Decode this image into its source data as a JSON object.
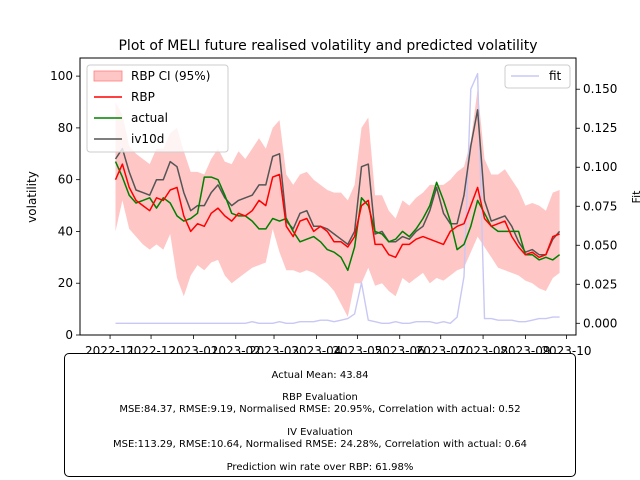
{
  "chart_data": {
    "type": "line",
    "title": "Plot of MELI future realised volatility and predicted volatility",
    "ylabel": "volatility",
    "y2label": "Fit",
    "x_ticks": [
      "2022-11",
      "2022-12",
      "2023-01",
      "2023-02",
      "2023-03",
      "2023-04",
      "2023-05",
      "2023-06",
      "2023-07",
      "2023-08",
      "2023-09",
      "2023-10"
    ],
    "ylim": [
      0,
      107
    ],
    "y_ticks": [
      0,
      20,
      40,
      60,
      80,
      100
    ],
    "y2lim": [
      -0.0075,
      0.17
    ],
    "y2_ticks": [
      "0.000",
      "0.025",
      "0.050",
      "0.075",
      "0.100",
      "0.125",
      "0.150"
    ],
    "legend_left": [
      "RBP CI (95%)",
      "RBP",
      "actual",
      "iv10d"
    ],
    "legend_right": [
      "fit"
    ],
    "colors": {
      "rbp": "#ff0000",
      "actual": "#008000",
      "iv10d": "#555555",
      "ci": "#ffb3b3",
      "fit": "#c8c8f5"
    },
    "x": [
      "2022-11-05",
      "2022-11-10",
      "2022-11-15",
      "2022-11-20",
      "2022-11-25",
      "2022-11-30",
      "2022-12-05",
      "2022-12-10",
      "2022-12-15",
      "2022-12-20",
      "2022-12-25",
      "2022-12-30",
      "2023-01-04",
      "2023-01-09",
      "2023-01-14",
      "2023-01-19",
      "2023-01-24",
      "2023-01-29",
      "2023-02-03",
      "2023-02-08",
      "2023-02-13",
      "2023-02-18",
      "2023-02-23",
      "2023-02-28",
      "2023-03-05",
      "2023-03-10",
      "2023-03-15",
      "2023-03-20",
      "2023-03-25",
      "2023-03-30",
      "2023-04-04",
      "2023-04-09",
      "2023-04-14",
      "2023-04-19",
      "2023-04-24",
      "2023-04-29",
      "2023-05-04",
      "2023-05-09",
      "2023-05-14",
      "2023-05-19",
      "2023-05-24",
      "2023-05-29",
      "2023-06-03",
      "2023-06-08",
      "2023-06-13",
      "2023-06-18",
      "2023-06-23",
      "2023-06-28",
      "2023-07-03",
      "2023-07-08",
      "2023-07-13",
      "2023-07-18",
      "2023-07-23",
      "2023-07-28",
      "2023-08-02",
      "2023-08-07",
      "2023-08-12",
      "2023-08-17",
      "2023-08-22",
      "2023-08-27",
      "2023-09-01",
      "2023-09-06",
      "2023-09-11",
      "2023-09-16",
      "2023-09-21",
      "2023-09-26"
    ],
    "series": [
      {
        "name": "RBP",
        "values": [
          60,
          66,
          57,
          52,
          50,
          48,
          53,
          52,
          56,
          57,
          46,
          40,
          43,
          42,
          47,
          49,
          46,
          44,
          47,
          46,
          48,
          52,
          50,
          61,
          62,
          42,
          38,
          44,
          45,
          40,
          42,
          40,
          36,
          36,
          34,
          38,
          50,
          52,
          35,
          35,
          31,
          30,
          35,
          35,
          37,
          38,
          37,
          36,
          35,
          40,
          42,
          43,
          50,
          57,
          45,
          42,
          43,
          44,
          38,
          34,
          31,
          32,
          30,
          31,
          38,
          39
        ]
      },
      {
        "name": "actual",
        "values": [
          67,
          61,
          54,
          51,
          52,
          53,
          49,
          53,
          51,
          46,
          44,
          45,
          47,
          61,
          61,
          60,
          54,
          47,
          46,
          46,
          44,
          41,
          41,
          45,
          44,
          45,
          40,
          36,
          37,
          38,
          36,
          33,
          32,
          30,
          25,
          34,
          53,
          50,
          40,
          39,
          36,
          37,
          40,
          38,
          41,
          45,
          50,
          59,
          52,
          44,
          33,
          35,
          42,
          52,
          47,
          42,
          40,
          40,
          40,
          40,
          31,
          31,
          29,
          30,
          29,
          31
        ]
      },
      {
        "name": "iv10d",
        "values": [
          68,
          72,
          63,
          56,
          55,
          54,
          60,
          60,
          67,
          65,
          55,
          48,
          50,
          50,
          55,
          58,
          53,
          50,
          52,
          53,
          54,
          58,
          58,
          69,
          70,
          44,
          41,
          47,
          48,
          42,
          42,
          41,
          39,
          37,
          35,
          40,
          65,
          66,
          39,
          40,
          36,
          36,
          38,
          37,
          40,
          42,
          48,
          57,
          47,
          43,
          43,
          54,
          73,
          87,
          52,
          44,
          45,
          46,
          42,
          36,
          32,
          33,
          31,
          31,
          37,
          40
        ]
      },
      {
        "name": "RBP CI (95%) lower",
        "values": [
          40,
          52,
          41,
          38,
          35,
          33,
          35,
          33,
          39,
          22,
          15,
          23,
          27,
          25,
          28,
          29,
          23,
          20,
          22,
          24,
          26,
          27,
          28,
          41,
          32,
          25,
          25,
          24,
          25,
          24,
          22,
          20,
          17,
          12,
          7,
          20,
          20,
          26,
          19,
          20,
          17,
          15,
          22,
          20,
          22,
          24,
          20,
          22,
          21,
          23,
          25,
          26,
          32,
          38,
          34,
          30,
          26,
          25,
          24,
          23,
          21,
          20,
          18,
          17,
          22,
          24
        ]
      },
      {
        "name": "RBP CI (95%) upper",
        "values": [
          90,
          85,
          73,
          70,
          68,
          66,
          72,
          72,
          78,
          80,
          71,
          63,
          63,
          62,
          68,
          72,
          67,
          66,
          71,
          68,
          72,
          76,
          72,
          80,
          83,
          62,
          58,
          62,
          63,
          60,
          58,
          56,
          55,
          55,
          52,
          58,
          80,
          84,
          54,
          54,
          48,
          45,
          52,
          50,
          53,
          55,
          58,
          58,
          58,
          60,
          63,
          65,
          75,
          95,
          68,
          62,
          62,
          64,
          60,
          56,
          50,
          51,
          50,
          48,
          55,
          56
        ]
      },
      {
        "name": "fit",
        "axis": "right",
        "values": [
          0.0,
          0.0,
          0.0,
          0.0,
          0.0,
          0.0,
          0.0,
          0.0,
          0.0,
          0.0,
          0.0,
          0.0,
          0.0,
          0.0,
          0.0,
          0.0,
          0.0,
          0.0,
          0.0,
          0.0,
          0.001,
          0.0,
          0.0,
          0.0,
          0.001,
          0.0,
          0.0,
          0.001,
          0.001,
          0.001,
          0.002,
          0.002,
          0.001,
          0.002,
          0.003,
          0.006,
          0.026,
          0.002,
          0.001,
          0.0,
          0.0,
          0.001,
          0.0,
          0.0,
          0.001,
          0.001,
          0.001,
          0.0,
          0.001,
          0.0,
          0.004,
          0.03,
          0.15,
          0.16,
          0.003,
          0.003,
          0.002,
          0.002,
          0.002,
          0.001,
          0.001,
          0.002,
          0.003,
          0.003,
          0.004,
          0.004
        ]
      }
    ]
  },
  "summary": {
    "actual_mean": "Actual Mean: 43.84",
    "rbp_title": "RBP Evaluation",
    "rbp_metrics": "MSE:84.37, RMSE:9.19, Normalised RMSE: 20.95%, Correlation with actual: 0.52",
    "iv_title": "IV Evaluation",
    "iv_metrics": "MSE:113.29, RMSE:10.64, Normalised RMSE: 24.28%, Correlation with actual: 0.64",
    "win_rate": "Prediction win rate over RBP: 61.98%"
  }
}
